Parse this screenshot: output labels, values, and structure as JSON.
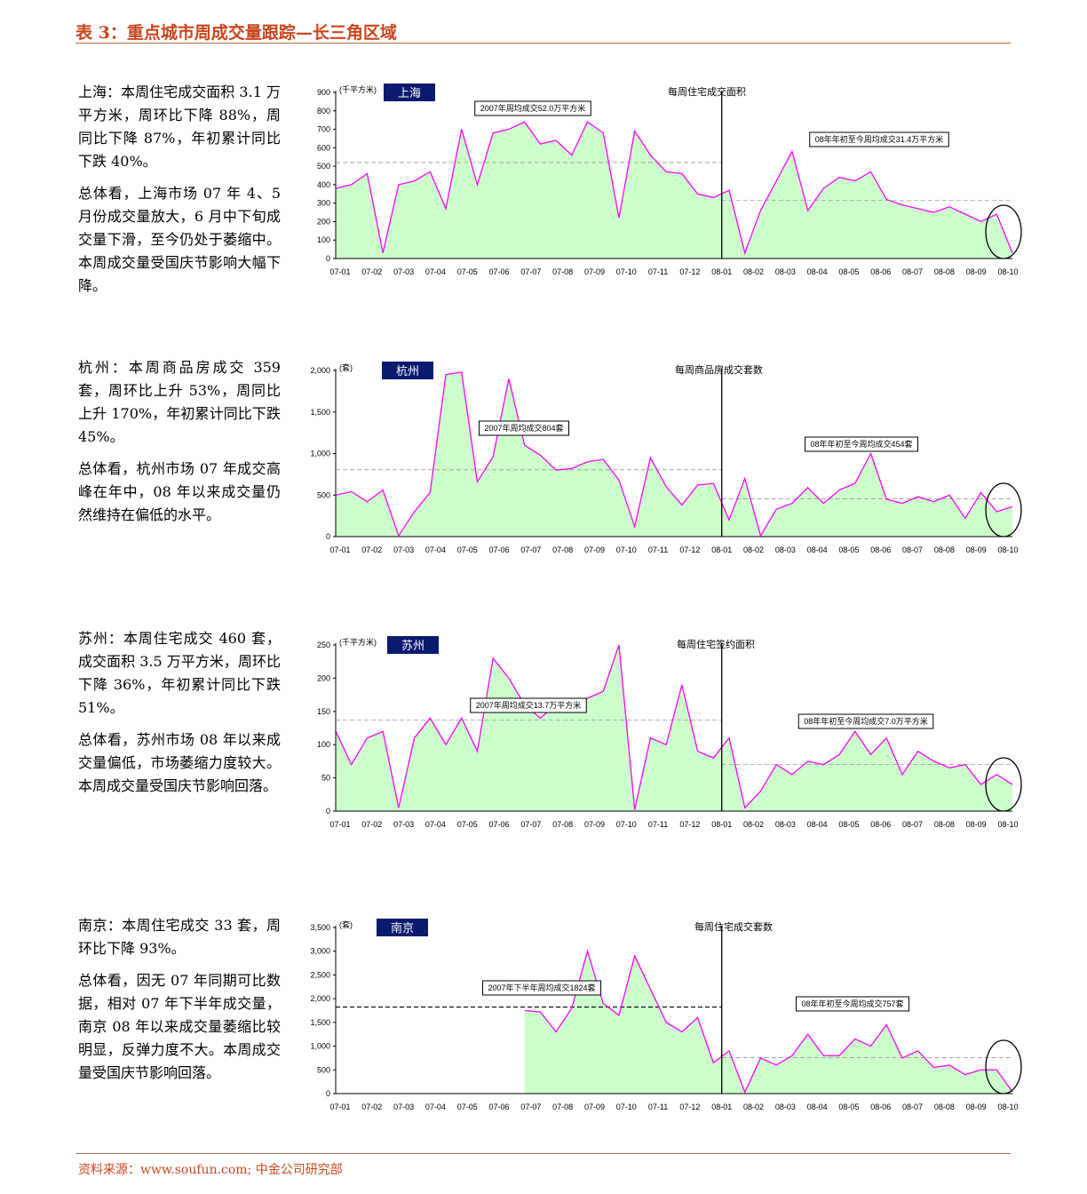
{
  "title": "表 3：重点城市周成交量跟踪—长三角区域",
  "sections": [
    {
      "paragraphs": [
        "上海：本周住宅成交面积 3.1 万平方米，周环比下降 88%，周同比下降 87%，年初累计同比下跌 40%。",
        "总体看，上海市场 07 年 4、5 月份成交量放大，6 月中下旬成交量下滑，至今仍处于萎缩中。本周成交量受国庆节影响大幅下降。"
      ]
    },
    {
      "paragraphs": [
        "杭州：本周商品房成交 359 套，周环比上升 53%，周同比上升 170%，年初累计同比下跌 45%。",
        "总体看，杭州市场 07 年成交高峰在年中，08 年以来成交量仍然维持在偏低的水平。"
      ]
    },
    {
      "paragraphs": [
        "苏州：本周住宅成交 460 套，成交面积 3.5 万平方米，周环比下降 36%，年初累计同比下跌 51%。",
        "总体看，苏州市场 08 年以来成交量偏低，市场萎缩力度较大。本周成交量受国庆节影响回落。"
      ]
    },
    {
      "paragraphs": [
        "南京：本周住宅成交 33 套，周环比下降 93%。",
        "总体看，因无 07 年同期可比数据，相对 07 年下半年成交量，南京 08 年以来成交量萎缩比较明显，反弹力度不大。本周成交量受国庆节影响回落。"
      ]
    }
  ],
  "chart_data": [
    {
      "type": "area",
      "city": "上海",
      "title": "每周住宅成交面积",
      "unit": "(千平方米)",
      "color": "#ff00ff",
      "fill": "#ccffcc",
      "xtick_labels": [
        "07-01",
        "07-02",
        "07-03",
        "07-04",
        "07-05",
        "07-06",
        "07-07",
        "07-08",
        "07-09",
        "07-10",
        "07-11",
        "07-12",
        "08-01",
        "08-02",
        "08-03",
        "08-04",
        "08-05",
        "08-06",
        "08-07",
        "08-08",
        "08-09",
        "08-10"
      ],
      "ylim": [
        0,
        900
      ],
      "yticks": [
        0,
        100,
        200,
        300,
        400,
        500,
        600,
        700,
        800,
        900
      ],
      "values": [
        380,
        400,
        460,
        30,
        400,
        420,
        470,
        270,
        700,
        400,
        680,
        700,
        740,
        620,
        640,
        560,
        740,
        680,
        220,
        690,
        560,
        470,
        460,
        350,
        330,
        370,
        30,
        260,
        420,
        580,
        260,
        380,
        440,
        420,
        470,
        320,
        290,
        270,
        250,
        280,
        240,
        200,
        240,
        30
      ],
      "avg_lines": [
        {
          "label": "2007年周均成交52.0万平方米",
          "value": 520
        },
        {
          "label": "08年年初至今周均成交31.4万平方米",
          "value": 314
        }
      ]
    },
    {
      "type": "area",
      "city": "杭州",
      "title": "每周商品房成交套数",
      "unit": "(套)",
      "color": "#ff00ff",
      "fill": "#ccffcc",
      "xtick_labels": [
        "07-01",
        "07-02",
        "07-03",
        "07-04",
        "07-05",
        "07-06",
        "07-07",
        "07-08",
        "07-09",
        "07-10",
        "07-11",
        "07-12",
        "08-01",
        "08-02",
        "08-03",
        "08-04",
        "08-05",
        "08-06",
        "08-07",
        "08-08",
        "08-09",
        "08-10"
      ],
      "ylim": [
        0,
        2000
      ],
      "yticks": [
        0,
        500,
        {
          "value": 1000,
          "label": "1,000"
        },
        {
          "value": 1500,
          "label": "1,500"
        },
        {
          "value": 2000,
          "label": "2,000"
        }
      ],
      "values": [
        500,
        540,
        420,
        560,
        10,
        300,
        530,
        1950,
        1980,
        660,
        960,
        1900,
        1100,
        980,
        800,
        820,
        900,
        930,
        680,
        120,
        950,
        600,
        380,
        620,
        640,
        200,
        700,
        10,
        330,
        400,
        590,
        400,
        560,
        640,
        1000,
        450,
        400,
        480,
        420,
        500,
        220,
        530,
        300,
        360
      ],
      "avg_lines": [
        {
          "label": "2007年周均成交804套",
          "value": 804
        },
        {
          "label": "08年年初至今周均成交454套",
          "value": 454
        }
      ]
    },
    {
      "type": "area",
      "city": "苏州",
      "title": "每周住宅签约面积",
      "unit": "(千平方米)",
      "color": "#ff00ff",
      "fill": "#ccffcc",
      "xtick_labels": [
        "07-01",
        "07-02",
        "07-03",
        "07-04",
        "07-05",
        "07-06",
        "07-07",
        "07-08",
        "07-09",
        "07-10",
        "07-11",
        "07-12",
        "08-01",
        "08-02",
        "08-03",
        "08-04",
        "08-05",
        "08-06",
        "08-07",
        "08-08",
        "08-09",
        "08-10"
      ],
      "ylim": [
        0,
        250
      ],
      "yticks": [
        0,
        50,
        100,
        150,
        200,
        250
      ],
      "values": [
        120,
        70,
        110,
        120,
        5,
        110,
        140,
        100,
        140,
        90,
        230,
        200,
        160,
        140,
        160,
        150,
        170,
        180,
        250,
        2,
        110,
        100,
        190,
        90,
        80,
        110,
        5,
        30,
        70,
        55,
        75,
        70,
        85,
        120,
        85,
        110,
        55,
        90,
        75,
        65,
        70,
        40,
        55,
        40
      ],
      "avg_lines": [
        {
          "label": "2007年周均成交13.7万平方米",
          "value": 137
        },
        {
          "label": "08年年初至今周均成交7.0万平方米",
          "value": 70
        }
      ]
    },
    {
      "type": "area",
      "city": "南京",
      "title": "每周住宅成交套数",
      "unit": "(套)",
      "color": "#ff00ff",
      "fill": "#ccffcc",
      "xtick_labels": [
        "07-01",
        "07-02",
        "07-03",
        "07-04",
        "07-05",
        "07-06",
        "07-07",
        "07-08",
        "07-09",
        "07-10",
        "07-11",
        "07-12",
        "08-01",
        "08-02",
        "08-03",
        "08-04",
        "08-05",
        "08-06",
        "08-07",
        "08-08",
        "08-09",
        "08-10"
      ],
      "ylim": [
        0,
        3500
      ],
      "yticks": [
        0,
        500,
        {
          "value": 1000,
          "label": "1,000"
        },
        {
          "value": 1500,
          "label": "1,500"
        },
        {
          "value": 2000,
          "label": "2,000"
        },
        {
          "value": 2500,
          "label": "2,500"
        },
        {
          "value": 3000,
          "label": "3,000"
        },
        {
          "value": 3500,
          "label": "3,500"
        }
      ],
      "values": [
        null,
        null,
        null,
        null,
        null,
        null,
        null,
        null,
        null,
        null,
        null,
        null,
        1750,
        1720,
        1300,
        1800,
        3000,
        1900,
        1650,
        2900,
        2200,
        1500,
        1300,
        1600,
        650,
        900,
        30,
        750,
        600,
        800,
        1250,
        800,
        800,
        1150,
        1000,
        1450,
        750,
        900,
        550,
        600,
        400,
        500,
        500,
        40
      ],
      "avg_lines": [
        {
          "label": "2007年下半年周均成交1824套",
          "value": 1824
        },
        {
          "label": "08年年初至今周均成交757套",
          "value": 757
        }
      ]
    }
  ],
  "source": "资料来源：www.soufun.com; 中金公司研究部"
}
